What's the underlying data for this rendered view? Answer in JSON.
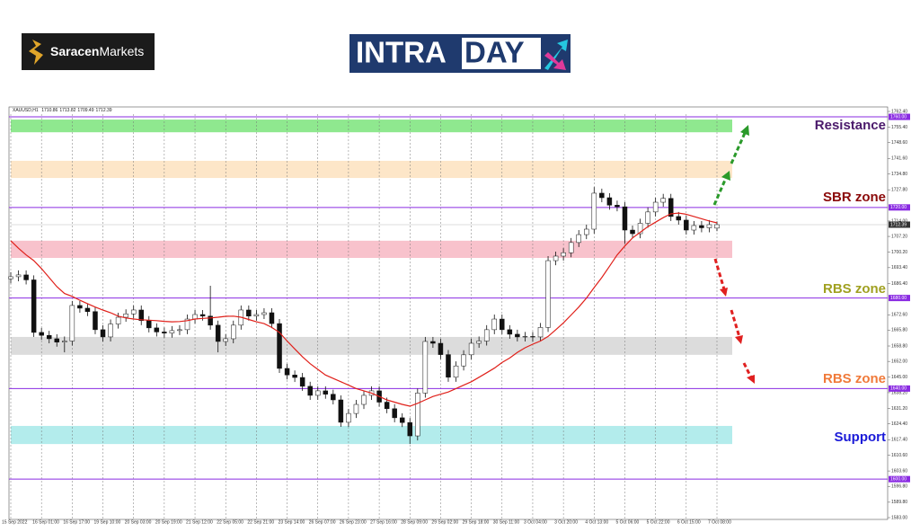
{
  "header": {
    "brand_bold": "Saracen",
    "brand_light": "Markets",
    "logo_a": "INTRA",
    "logo_b": "DAY"
  },
  "chart_data": {
    "type": "candlestick",
    "symbol": "XAUUSD,H1",
    "categories": [
      "15 Sep 2022",
      null,
      null,
      null,
      "16 Sep 01:00",
      null,
      null,
      null,
      "16 Sep 17:00",
      null,
      null,
      null,
      "19 Sep 10:00",
      null,
      null,
      null,
      "20 Sep 03:00",
      null,
      null,
      null,
      "20 Sep 19:00",
      null,
      null,
      null,
      "21 Sep 12:00",
      null,
      null,
      null,
      "22 Sep 05:00",
      null,
      null,
      null,
      "22 Sep 21:00",
      null,
      null,
      null,
      "23 Sep 14:00",
      null,
      null,
      null,
      "26 Sep 07:00",
      null,
      null,
      null,
      "26 Sep 23:00",
      null,
      null,
      null,
      "27 Sep 16:00",
      null,
      null,
      null,
      "28 Sep 09:00",
      null,
      null,
      null,
      "29 Sep 02:00",
      null,
      null,
      null,
      "29 Sep 18:00",
      null,
      null,
      null,
      "30 Sep 11:00",
      null,
      null,
      null,
      "3 Oct 04:00",
      null,
      null,
      null,
      "3 Oct 20:00",
      null,
      null,
      null,
      "4 Oct 13:00",
      null,
      null,
      null,
      "5 Oct 06:00",
      null,
      null,
      null,
      "5 Oct 22:00",
      null,
      null,
      null,
      "6 Oct 15:00",
      null,
      null,
      null,
      "7 Oct 08:00"
    ],
    "open": [
      1688.5,
      1689.4,
      1690.2,
      1688,
      1664.8,
      1663.5,
      1662,
      1660.5,
      1661,
      1676.7,
      1675.5,
      1674,
      1666,
      1662.8,
      1668.5,
      1671.5,
      1673,
      1674.7,
      1670,
      1666.8,
      1665,
      1664.5,
      1665.6,
      1666,
      1670.7,
      1672.7,
      1672,
      1668,
      1660.8,
      1662,
      1668,
      1674.7,
      1672,
      1672.7,
      1673.5,
      1668.7,
      1648.9,
      1646,
      1644.9,
      1641,
      1637,
      1639,
      1637.5,
      1635,
      1625.1,
      1629,
      1633,
      1637,
      1639,
      1634,
      1631.1,
      1627.1,
      1625,
      1619.1,
      1638,
      1660.8,
      1660,
      1655,
      1645,
      1650,
      1654.9,
      1660,
      1661,
      1666,
      1670.7,
      1666,
      1664,
      1662.8,
      1663,
      1662.8,
      1667,
      1696.5,
      1698.5,
      1700,
      1704.5,
      1708,
      1710.4,
      1726.3,
      1724.3,
      1721,
      1720.3,
      1710,
      1708.4,
      1713,
      1718,
      1722.3,
      1724,
      1716,
      1714.4,
      1710,
      1712,
      1711,
      1710.86
    ],
    "high": [
      1691.4,
      1692.2,
      1692.2,
      1690,
      1666.8,
      1665.5,
      1664,
      1663,
      1678.7,
      1678.7,
      1677.5,
      1676,
      1668,
      1670.5,
      1673.5,
      1675,
      1676.7,
      1676.7,
      1672,
      1668.8,
      1667,
      1667.6,
      1668,
      1672.7,
      1674.7,
      1674.7,
      1685.4,
      1670,
      1664,
      1670,
      1676.7,
      1676.7,
      1674.7,
      1675.5,
      1675.5,
      1670.7,
      1650.9,
      1648,
      1646.9,
      1643,
      1641,
      1641,
      1639.5,
      1637,
      1631,
      1635,
      1639,
      1641,
      1641,
      1636,
      1633.1,
      1629.1,
      1627,
      1640,
      1662.8,
      1662.8,
      1662,
      1657,
      1652,
      1656.9,
      1662,
      1663,
      1668,
      1672.7,
      1672.7,
      1668,
      1666,
      1665,
      1665,
      1669,
      1698.5,
      1700.5,
      1702,
      1706.5,
      1710,
      1712.4,
      1729,
      1728.3,
      1726.3,
      1723,
      1722.3,
      1712,
      1715,
      1720,
      1724.3,
      1726,
      1726,
      1718,
      1716.4,
      1714,
      1714,
      1714.4,
      1713.82
    ],
    "low": [
      1686.5,
      1687.4,
      1686,
      1662.8,
      1661.5,
      1660,
      1658.5,
      1656,
      1659,
      1673.5,
      1672,
      1664,
      1660.8,
      1660.8,
      1666.5,
      1669.5,
      1671,
      1668,
      1664.8,
      1663,
      1662.5,
      1662.5,
      1663.6,
      1664,
      1668.7,
      1670,
      1666,
      1656,
      1658.8,
      1660,
      1666,
      1670,
      1670,
      1670.7,
      1666.7,
      1646.9,
      1644,
      1642.9,
      1639,
      1635,
      1635,
      1635.5,
      1633,
      1623.1,
      1623.1,
      1627,
      1631,
      1635,
      1632,
      1629.1,
      1625.1,
      1623,
      1615.5,
      1617.1,
      1636,
      1658,
      1653,
      1643,
      1643,
      1648,
      1652.9,
      1658,
      1659,
      1664,
      1664,
      1662,
      1660.8,
      1660.8,
      1660.8,
      1660.8,
      1665,
      1694.5,
      1696.5,
      1698,
      1702.5,
      1706,
      1708.4,
      1722.3,
      1719,
      1718.3,
      1704,
      1706.4,
      1706.4,
      1711,
      1716,
      1720.3,
      1714,
      1712.4,
      1708,
      1708,
      1709,
      1709,
      1709.49
    ],
    "close": [
      1689.4,
      1690.2,
      1688,
      1664.8,
      1663.5,
      1662,
      1660.5,
      1661,
      1676.7,
      1675.5,
      1674,
      1666,
      1662.8,
      1668.5,
      1671.5,
      1673,
      1674.7,
      1670,
      1666.8,
      1665,
      1664.5,
      1665.6,
      1666,
      1670.7,
      1672.7,
      1672,
      1668,
      1660.8,
      1662,
      1668,
      1674.7,
      1672,
      1672.7,
      1673.5,
      1668.7,
      1648.9,
      1646,
      1644.9,
      1641,
      1637,
      1639,
      1637.5,
      1635,
      1625.1,
      1629,
      1633,
      1637,
      1639,
      1634,
      1631.1,
      1627.1,
      1625,
      1619.1,
      1638,
      1660.8,
      1660,
      1655,
      1645,
      1650,
      1654.9,
      1660,
      1661,
      1666,
      1670.7,
      1666,
      1664,
      1662.8,
      1663,
      1662.8,
      1667,
      1696.5,
      1698.5,
      1700,
      1704.5,
      1708,
      1710.4,
      1726.3,
      1724.3,
      1721,
      1720.3,
      1710,
      1708.4,
      1713,
      1718,
      1722.3,
      1724,
      1716,
      1714.4,
      1710,
      1712,
      1711,
      1712.4,
      1712.39
    ],
    "bull_color": "#ffffff",
    "bear_color": "#111111",
    "wick_color": "#111111",
    "ma": {
      "color": "#e0201a",
      "values": [
        1705.3,
        1702,
        1699,
        1696.5,
        1693,
        1689,
        1685,
        1682,
        1680.7,
        1679,
        1677.5,
        1676,
        1674.7,
        1673.5,
        1672,
        1671.2,
        1670.7,
        1670.4,
        1670.2,
        1670,
        1669.7,
        1669.5,
        1669.6,
        1670,
        1670.7,
        1671,
        1671.2,
        1671.5,
        1671.9,
        1672,
        1671.5,
        1670.5,
        1669.5,
        1668.7,
        1667,
        1664.8,
        1661,
        1657.5,
        1654,
        1651,
        1648.5,
        1646,
        1644.5,
        1643,
        1641.5,
        1640,
        1639,
        1638,
        1636.5,
        1635,
        1634,
        1633,
        1632.2,
        1633.5,
        1635,
        1636.5,
        1637.5,
        1638.5,
        1640,
        1641.5,
        1643,
        1645,
        1647,
        1649,
        1651.5,
        1653.5,
        1656,
        1658,
        1659.6,
        1661,
        1663,
        1666,
        1669,
        1672.5,
        1676,
        1680,
        1684.6,
        1689,
        1694,
        1699,
        1703,
        1706.5,
        1709,
        1711.5,
        1713.5,
        1715.5,
        1717.2,
        1717.5,
        1717,
        1716,
        1715,
        1714,
        1713.2
      ]
    },
    "ylim": [
      1583,
      1762.4
    ],
    "yticks": [
      {
        "value": 1762.4,
        "label": "1762.40"
      },
      {
        "value": 1755.4,
        "label": "1755.40"
      },
      {
        "value": 1748.6,
        "label": "1748.60"
      },
      {
        "value": 1741.6,
        "label": "1741.60"
      },
      {
        "value": 1734.8,
        "label": "1734.80"
      },
      {
        "value": 1727.8,
        "label": "1727.80"
      },
      {
        "value": 1714,
        "label": "1714.00"
      },
      {
        "value": 1707.2,
        "label": "1707.20"
      },
      {
        "value": 1700.2,
        "label": "1700.20"
      },
      {
        "value": 1693.4,
        "label": "1693.40"
      },
      {
        "value": 1686.4,
        "label": "1686.40"
      },
      {
        "value": 1672.6,
        "label": "1672.60"
      },
      {
        "value": 1665.8,
        "label": "1665.80"
      },
      {
        "value": 1658.8,
        "label": "1658.80"
      },
      {
        "value": 1652,
        "label": "1652.00"
      },
      {
        "value": 1645,
        "label": "1645.00"
      },
      {
        "value": 1638.2,
        "label": "1638.20"
      },
      {
        "value": 1631.2,
        "label": "1631.20"
      },
      {
        "value": 1624.4,
        "label": "1624.40"
      },
      {
        "value": 1617.4,
        "label": "1617.40"
      },
      {
        "value": 1610.6,
        "label": "1610.60"
      },
      {
        "value": 1603.6,
        "label": "1603.60"
      },
      {
        "value": 1596.8,
        "label": "1596.80"
      },
      {
        "value": 1589.8,
        "label": "1589.80"
      },
      {
        "value": 1583,
        "label": "1583.00"
      }
    ],
    "levels": [
      {
        "value": 1760,
        "label": "1760.00"
      },
      {
        "value": 1720,
        "label": "1720.00"
      },
      {
        "value": 1680,
        "label": "1680.00"
      },
      {
        "value": 1640,
        "label": "1640.00"
      },
      {
        "value": 1600,
        "label": "1600.00"
      }
    ],
    "level_color": "#8a2be2",
    "current_price": 1712.39,
    "zones": [
      {
        "from": 1753.2,
        "to": 1758.8,
        "color": "#8fe88f"
      },
      {
        "from": 1733,
        "to": 1740.6,
        "color": "#fde6c8"
      },
      {
        "from": 1697.7,
        "to": 1705.3,
        "color": "#f8c2cc"
      },
      {
        "from": 1654.9,
        "to": 1662.8,
        "color": "#dcdcdc"
      },
      {
        "from": 1615.5,
        "to": 1623.5,
        "color": "#b3ecec"
      }
    ],
    "annotations": [
      {
        "text": "Resistance",
        "color": "#4b1a6b"
      },
      {
        "text": "SBR zone",
        "color": "#8b0a0a"
      },
      {
        "text": "RBS zone",
        "color": "#a0a020"
      },
      {
        "text": "RBS zone",
        "color": "#f07a3a"
      },
      {
        "text": "Support",
        "color": "#1a1ad8"
      }
    ],
    "grid": true
  }
}
